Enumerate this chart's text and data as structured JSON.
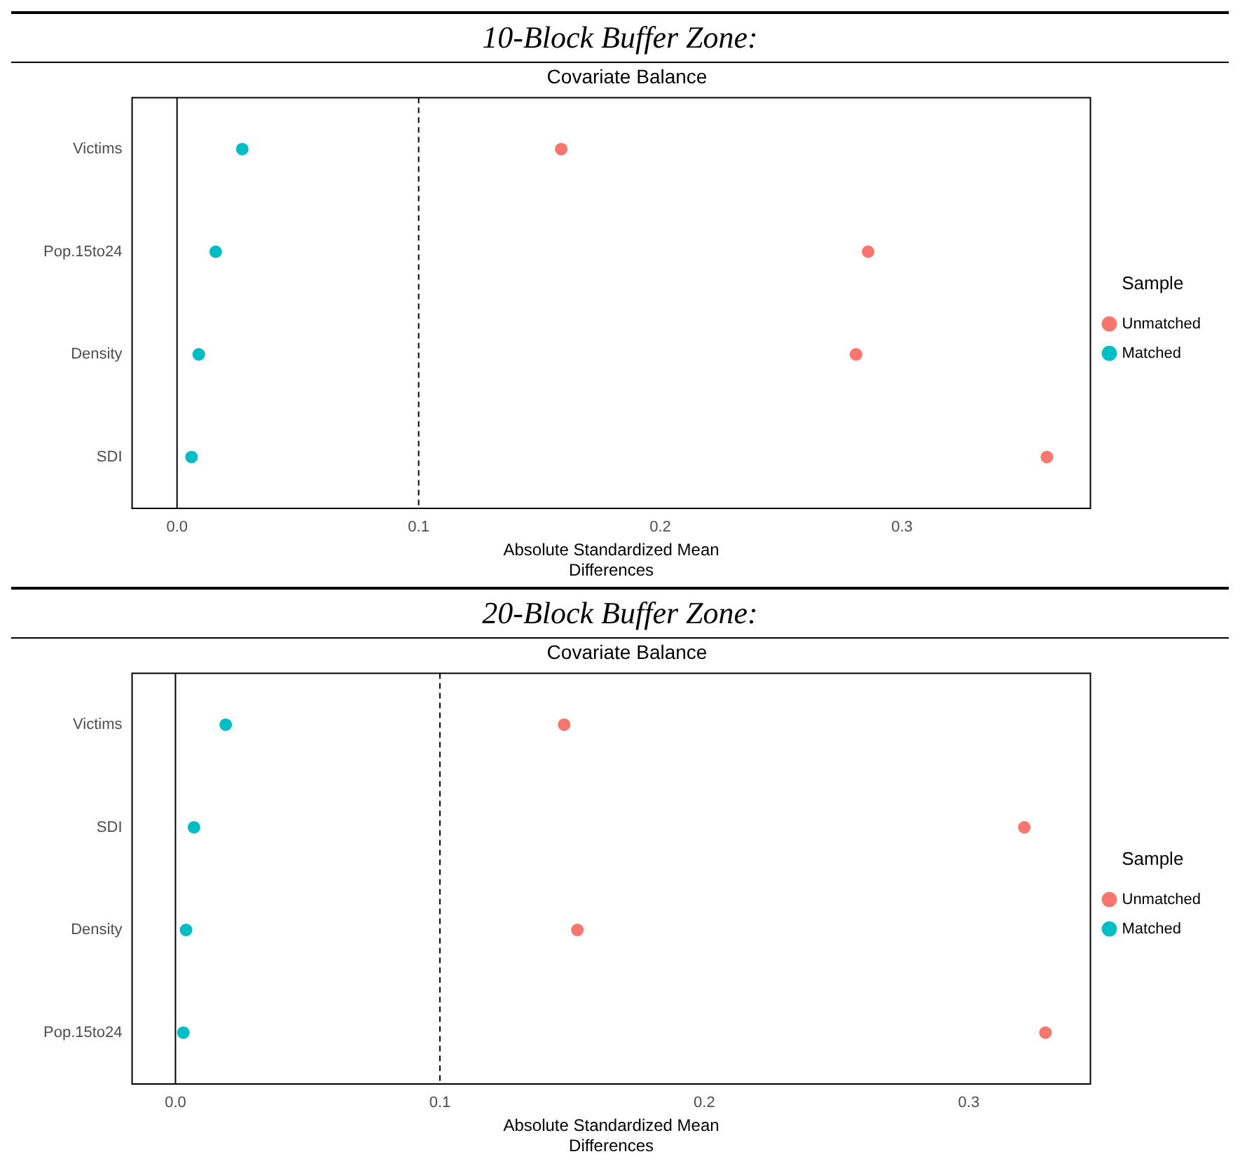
{
  "chart_data": [
    {
      "type": "scatter",
      "annotations": [
        "10-Block Buffer Zone:"
      ],
      "title": "Covariate Balance",
      "xlabel": "Absolute Standardized Mean Differences",
      "orientation": "horizontal",
      "categories": [
        "Victims",
        "Pop.15to24",
        "Density",
        "SDI"
      ],
      "series": [
        {
          "name": "Unmatched",
          "color": "#f8766d",
          "values": [
            0.159,
            0.286,
            0.281,
            0.36
          ]
        },
        {
          "name": "Matched",
          "color": "#00bfc4",
          "values": [
            0.027,
            0.016,
            0.009,
            0.006
          ]
        }
      ],
      "xlim": [
        -0.0186,
        0.378
      ],
      "xticks": [
        {
          "value": 0,
          "label": "0.0"
        },
        0.1,
        0.2,
        0.3
      ],
      "legend": "right",
      "legend_title": "Sample",
      "grid": false,
      "marker": "circle",
      "ref_lines": [
        {
          "axis": "x",
          "value": 0,
          "color": "#000000",
          "line_style": "solid"
        },
        {
          "axis": "x",
          "value": 0.1,
          "color": "#000000",
          "line_style": "dashed"
        }
      ]
    },
    {
      "type": "scatter",
      "annotations": [
        "20-Block Buffer Zone:"
      ],
      "title": "Covariate Balance",
      "xlabel": "Absolute Standardized Mean Differences",
      "orientation": "horizontal",
      "categories": [
        "Victims",
        "SDI",
        "Density",
        "Pop.15to24"
      ],
      "series": [
        {
          "name": "Unmatched",
          "color": "#f8766d",
          "values": [
            0.147,
            0.321,
            0.152,
            0.329
          ]
        },
        {
          "name": "Matched",
          "color": "#00bfc4",
          "values": [
            0.019,
            0.007,
            0.004,
            0.003
          ]
        }
      ],
      "xlim": [
        -0.0164,
        0.346
      ],
      "xticks": [
        {
          "value": 0,
          "label": "0.0"
        },
        0.1,
        0.2,
        0.3
      ],
      "legend": "right",
      "legend_title": "Sample",
      "grid": false,
      "marker": "circle",
      "ref_lines": [
        {
          "axis": "x",
          "value": 0,
          "color": "#000000",
          "line_style": "solid"
        },
        {
          "axis": "x",
          "value": 0.1,
          "color": "#000000",
          "line_style": "dashed"
        }
      ]
    }
  ]
}
